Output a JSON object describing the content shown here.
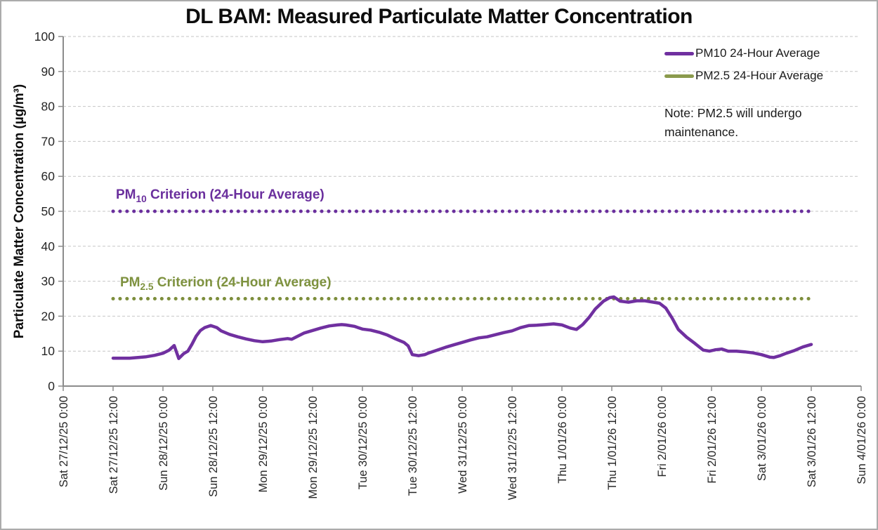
{
  "title": "DL BAM: Measured Particulate Matter Concentration",
  "colors": {
    "pm10_series": "#7030A0",
    "pm25_series": "#8B9A4D",
    "pm10_criterion": "#6A2F9D",
    "pm25_criterion": "#7D8E3C",
    "pm10_criterion_label": "#6A2F9D",
    "pm25_criterion_label": "#7E923F",
    "gridline": "#C6C6C6",
    "axis": "#8C8C8C",
    "tick_text": "#262626"
  },
  "legend": {
    "items": [
      {
        "label": "PM10 24-Hour Average",
        "color": "#7030A0"
      },
      {
        "label": "PM2.5 24-Hour Average",
        "color": "#8B9A4D"
      }
    ]
  },
  "note": {
    "lines": [
      "Note: PM2.5 will undergo",
      "maintenance."
    ]
  },
  "criterion_labels": {
    "pm10": {
      "prefix": "PM",
      "sub": "10",
      "rest": " Criterion (24-Hour Average)"
    },
    "pm25": {
      "prefix": "PM",
      "sub": "2.5",
      "rest": " Criterion (24-Hour Average)"
    }
  },
  "chart_data": {
    "type": "line",
    "title": "DL BAM: Measured Particulate Matter Concentration",
    "xlabel": "",
    "ylabel": "Particulate Matter Concentration (µg/m³)",
    "ylim": [
      0,
      100
    ],
    "y_ticks": [
      0,
      10,
      20,
      30,
      40,
      50,
      60,
      70,
      80,
      90,
      100
    ],
    "x_tick_labels": [
      "Sat 27/12/25 0:00",
      "Sat 27/12/25 12:00",
      "Sun 28/12/25 0:00",
      "Sun 28/12/25 12:00",
      "Mon 29/12/25 0:00",
      "Mon 29/12/25 12:00",
      "Tue 30/12/25 0:00",
      "Tue 30/12/25 12:00",
      "Wed 31/12/25 0:00",
      "Wed 31/12/25 12:00",
      "Thu 1/01/26 0:00",
      "Thu 1/01/26 12:00",
      "Fri 2/01/26 0:00",
      "Fri 2/01/26 12:00",
      "Sat 3/01/26 0:00",
      "Sat 3/01/26 12:00",
      "Sun 4/01/26 0:00"
    ],
    "x_hours_per_tick": 12,
    "grid": "horizontal-dashed",
    "legend_position": "top-right",
    "series": [
      {
        "name": "PM10 24-Hour Average",
        "color": "#7030A0",
        "points": [
          [
            12,
            8.0
          ],
          [
            14,
            8.0
          ],
          [
            16,
            8.0
          ],
          [
            18,
            8.2
          ],
          [
            20,
            8.4
          ],
          [
            22,
            8.8
          ],
          [
            24,
            9.4
          ],
          [
            25.5,
            10.3
          ],
          [
            26.7,
            11.6
          ],
          [
            27.8,
            7.9
          ],
          [
            29,
            9.3
          ],
          [
            30,
            10.0
          ],
          [
            31,
            12.0
          ],
          [
            32,
            14.3
          ],
          [
            33,
            15.9
          ],
          [
            34,
            16.7
          ],
          [
            35.5,
            17.3
          ],
          [
            37,
            16.7
          ],
          [
            38,
            15.8
          ],
          [
            40,
            14.8
          ],
          [
            42,
            14.1
          ],
          [
            44,
            13.5
          ],
          [
            46,
            13.0
          ],
          [
            48,
            12.7
          ],
          [
            50,
            12.9
          ],
          [
            52,
            13.3
          ],
          [
            54,
            13.6
          ],
          [
            55,
            13.4
          ],
          [
            56,
            14.0
          ],
          [
            58,
            15.2
          ],
          [
            60,
            15.9
          ],
          [
            62,
            16.6
          ],
          [
            64,
            17.2
          ],
          [
            66,
            17.5
          ],
          [
            67,
            17.6
          ],
          [
            68,
            17.5
          ],
          [
            70,
            17.1
          ],
          [
            72,
            16.3
          ],
          [
            74,
            16.0
          ],
          [
            76,
            15.4
          ],
          [
            78,
            14.6
          ],
          [
            80,
            13.5
          ],
          [
            82,
            12.5
          ],
          [
            83,
            11.5
          ],
          [
            84,
            9.0
          ],
          [
            85.5,
            8.7
          ],
          [
            87,
            9.0
          ],
          [
            88,
            9.5
          ],
          [
            90,
            10.3
          ],
          [
            92,
            11.1
          ],
          [
            94,
            11.8
          ],
          [
            96,
            12.5
          ],
          [
            98,
            13.2
          ],
          [
            100,
            13.8
          ],
          [
            102,
            14.1
          ],
          [
            104,
            14.7
          ],
          [
            106,
            15.3
          ],
          [
            108,
            15.8
          ],
          [
            110,
            16.7
          ],
          [
            112,
            17.3
          ],
          [
            114,
            17.4
          ],
          [
            116,
            17.6
          ],
          [
            118,
            17.8
          ],
          [
            120,
            17.5
          ],
          [
            122,
            16.6
          ],
          [
            123.5,
            16.2
          ],
          [
            125,
            17.6
          ],
          [
            126.5,
            19.6
          ],
          [
            128,
            22.0
          ],
          [
            130,
            24.3
          ],
          [
            131.5,
            25.3
          ],
          [
            132.5,
            25.5
          ],
          [
            134,
            24.3
          ],
          [
            136,
            24.0
          ],
          [
            138,
            24.4
          ],
          [
            140,
            24.4
          ],
          [
            142,
            24.0
          ],
          [
            143.5,
            23.7
          ],
          [
            145,
            22.3
          ],
          [
            146.5,
            19.5
          ],
          [
            148,
            16.2
          ],
          [
            150,
            14.0
          ],
          [
            152,
            12.2
          ],
          [
            154,
            10.3
          ],
          [
            155.5,
            10.0
          ],
          [
            157,
            10.4
          ],
          [
            158.5,
            10.6
          ],
          [
            160,
            10.0
          ],
          [
            162,
            10.0
          ],
          [
            164,
            9.8
          ],
          [
            166,
            9.5
          ],
          [
            168,
            9.0
          ],
          [
            170,
            8.3
          ],
          [
            171,
            8.2
          ],
          [
            172.5,
            8.7
          ],
          [
            174,
            9.4
          ],
          [
            176,
            10.2
          ],
          [
            178,
            11.2
          ],
          [
            180,
            11.9
          ]
        ]
      },
      {
        "name": "PM2.5 24-Hour Average",
        "color": "#8B9A4D",
        "points": []
      }
    ],
    "reference_lines": [
      {
        "name": "PM10 Criterion (24-Hour Average)",
        "value": 50,
        "color": "#6A2F9D",
        "style": "dotted",
        "x_hours_range": [
          12,
          180
        ]
      },
      {
        "name": "PM2.5 Criterion (24-Hour Average)",
        "value": 25,
        "color": "#7D8E3C",
        "style": "dotted",
        "x_hours_range": [
          12,
          180
        ]
      }
    ]
  }
}
